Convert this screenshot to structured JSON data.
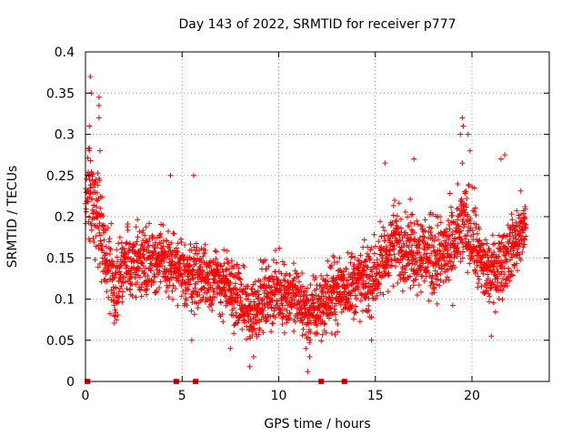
{
  "chart_data": {
    "type": "scatter",
    "title": "Day 143 of 2022, SRMTID for receiver p777",
    "xlabel": "GPS time / hours",
    "ylabel": "SRMTID / TECUs",
    "xlim": [
      0,
      24
    ],
    "ylim": [
      0,
      0.4
    ],
    "xticks": [
      0,
      5,
      10,
      15,
      20
    ],
    "xtick_labels": [
      "0",
      "5",
      "10",
      "15",
      "20"
    ],
    "yticks": [
      0,
      0.05,
      0.1,
      0.15,
      0.2,
      0.25,
      0.3,
      0.35,
      0.4
    ],
    "ytick_labels": [
      "0",
      "0.05",
      "0.1",
      "0.15",
      "0.2",
      "0.25",
      "0.3",
      "0.35",
      "0.4"
    ],
    "grid": true,
    "marker": "plus",
    "color": "#ff0000",
    "series": [
      {
        "name": "SRMTID",
        "note": "dense per-epoch scatter; values sampled from the trend the figure shows",
        "trend": {
          "x": [
            0.0,
            0.3,
            0.7,
            1.0,
            1.5,
            2.0,
            3.0,
            4.0,
            5.0,
            6.0,
            7.0,
            8.0,
            8.5,
            9.0,
            10.0,
            11.0,
            11.5,
            12.0,
            13.0,
            14.0,
            14.5,
            15.0,
            15.5,
            16.0,
            17.0,
            18.0,
            19.0,
            19.5,
            20.0,
            20.5,
            21.0,
            22.0,
            22.8
          ],
          "y": [
            0.22,
            0.23,
            0.2,
            0.15,
            0.12,
            0.14,
            0.15,
            0.145,
            0.13,
            0.13,
            0.12,
            0.1,
            0.08,
            0.1,
            0.11,
            0.1,
            0.08,
            0.09,
            0.11,
            0.12,
            0.12,
            0.13,
            0.15,
            0.17,
            0.16,
            0.15,
            0.16,
            0.19,
            0.18,
            0.14,
            0.13,
            0.16,
            0.19
          ]
        },
        "spread": [
          0.0,
          0.35,
          1.0,
          2.0,
          4.0,
          7.0,
          9.0,
          13.0,
          15.0,
          17.0,
          19.0,
          20.0,
          21.0,
          22.8
        ],
        "spread_values": [
          0.05,
          0.06,
          0.05,
          0.04,
          0.035,
          0.035,
          0.035,
          0.035,
          0.04,
          0.04,
          0.045,
          0.045,
          0.035,
          0.035
        ],
        "peaks": [
          {
            "x": 0.25,
            "y": 0.37
          },
          {
            "x": 0.3,
            "y": 0.35
          },
          {
            "x": 0.2,
            "y": 0.31
          },
          {
            "x": 0.7,
            "y": 0.345
          },
          {
            "x": 0.7,
            "y": 0.335
          },
          {
            "x": 0.7,
            "y": 0.32
          },
          {
            "x": 0.75,
            "y": 0.28
          },
          {
            "x": 0.2,
            "y": 0.28
          },
          {
            "x": 19.5,
            "y": 0.32
          },
          {
            "x": 19.55,
            "y": 0.31
          },
          {
            "x": 19.4,
            "y": 0.3
          },
          {
            "x": 19.8,
            "y": 0.3
          },
          {
            "x": 19.9,
            "y": 0.28
          },
          {
            "x": 19.5,
            "y": 0.265
          },
          {
            "x": 21.7,
            "y": 0.275
          },
          {
            "x": 21.5,
            "y": 0.27
          },
          {
            "x": 17.0,
            "y": 0.27
          },
          {
            "x": 15.5,
            "y": 0.265
          },
          {
            "x": 4.4,
            "y": 0.25
          },
          {
            "x": 5.6,
            "y": 0.25
          }
        ],
        "lows": [
          {
            "x": 8.5,
            "y": 0.018
          },
          {
            "x": 11.5,
            "y": 0.012
          },
          {
            "x": 11.6,
            "y": 0.03
          },
          {
            "x": 8.7,
            "y": 0.03
          },
          {
            "x": 21.0,
            "y": 0.055
          },
          {
            "x": 5.5,
            "y": 0.05
          },
          {
            "x": 7.5,
            "y": 0.04
          },
          {
            "x": 14.8,
            "y": 0.05
          }
        ],
        "zero_markers": [
          0.1,
          4.7,
          5.7,
          12.2,
          13.4
        ]
      }
    ]
  }
}
